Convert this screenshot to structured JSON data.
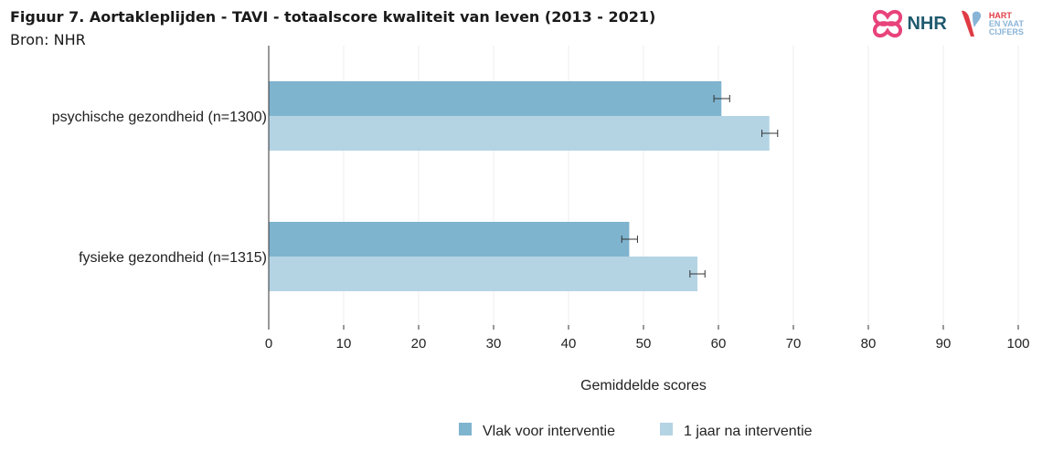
{
  "header": {
    "title": "Figuur 7. Aortakleplijden - TAVI - totaalscore kwaliteit van leven (2013 - 2021)",
    "source": "Bron: NHR"
  },
  "logos": {
    "nhr_text": "NHR",
    "hvc_line1": "HART",
    "hvc_line2": "EN VAAT",
    "hvc_line3": "CIJFERS"
  },
  "chart_data": {
    "type": "bar",
    "orientation": "horizontal",
    "categories": [
      "psychische gezondheid (n=1300)",
      "fysieke gezondheid (n=1315)"
    ],
    "series": [
      {
        "name": "Vlak voor interventie",
        "values": [
          60.4,
          48.1
        ],
        "error_low": [
          59.4,
          47.1
        ],
        "error_high": [
          61.5,
          49.2
        ],
        "color": "#7fb4cf"
      },
      {
        "name": "1 jaar na interventie",
        "values": [
          66.8,
          57.2
        ],
        "error_low": [
          65.8,
          56.2
        ],
        "error_high": [
          67.9,
          58.2
        ],
        "color": "#b4d4e4"
      }
    ],
    "xlabel": "Gemiddelde scores",
    "ylabel": "",
    "xlim": [
      0,
      100
    ],
    "xticks": [
      0,
      10,
      20,
      30,
      40,
      50,
      60,
      70,
      80,
      90,
      100
    ],
    "grid": true,
    "legend": "bottom"
  }
}
